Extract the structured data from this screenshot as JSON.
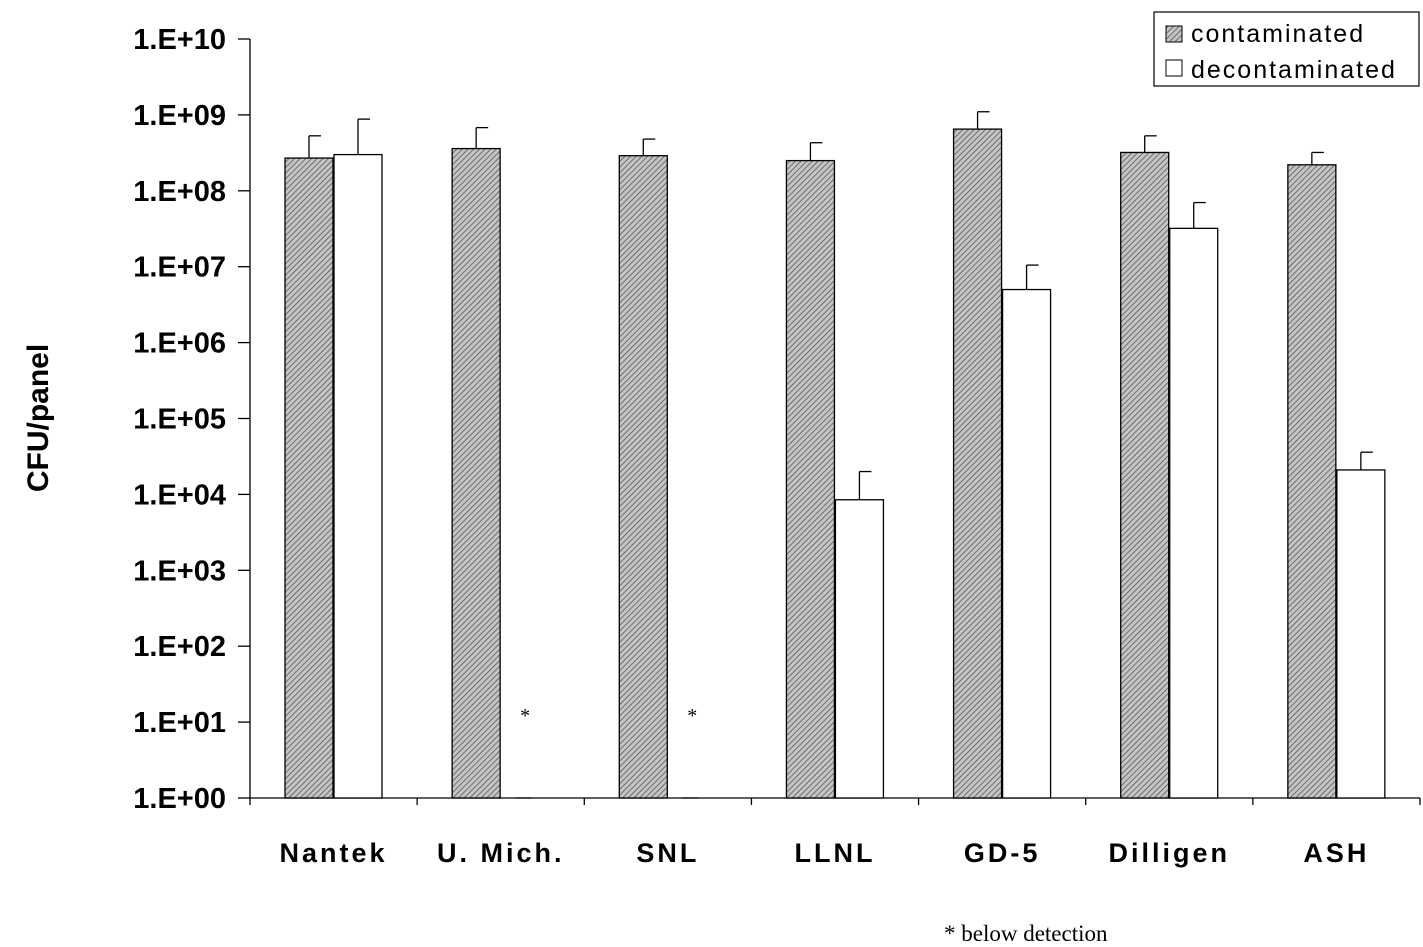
{
  "chart_data": {
    "type": "bar",
    "title": "",
    "xlabel": "",
    "ylabel": "CFU/panel",
    "yscale": "log",
    "ylim": [
      1,
      10000000000
    ],
    "ytick_labels": [
      "1.E+00",
      "1.E+01",
      "1.E+02",
      "1.E+03",
      "1.E+04",
      "1.E+05",
      "1.E+06",
      "1.E+07",
      "1.E+08",
      "1.E+09",
      "1.E+10"
    ],
    "categories": [
      "Nantek",
      "U. Mich.",
      "SNL",
      "LLNL",
      "GD-5",
      "Dilligen",
      "ASH"
    ],
    "series": [
      {
        "name": "contaminated",
        "values": [
          270000000,
          360000000,
          290000000,
          250000000,
          650000000,
          320000000,
          220000000
        ],
        "error_upper": [
          530000000,
          680000000,
          480000000,
          430000000,
          1100000000,
          530000000,
          320000000
        ],
        "pattern": "hatched-gray"
      },
      {
        "name": "decontaminated",
        "values": [
          300000000,
          null,
          null,
          8500,
          5000000,
          32000000,
          21000
        ],
        "error_upper": [
          880000000,
          null,
          null,
          20000,
          10500000,
          70000000,
          36000
        ],
        "pattern": "white"
      }
    ],
    "annotations": [
      {
        "category": "U. Mich.",
        "series": "decontaminated",
        "text": "*"
      },
      {
        "category": "SNL",
        "series": "decontaminated",
        "text": "*"
      }
    ],
    "legend": {
      "placement": "top-right",
      "entries": [
        "contaminated",
        "decontaminated"
      ]
    },
    "footnote": "* below detection",
    "colors": {
      "axis": "#000000",
      "hatch_fill": "#bdbdbd",
      "hatch_line": "#444444",
      "white_fill": "#ffffff"
    }
  }
}
